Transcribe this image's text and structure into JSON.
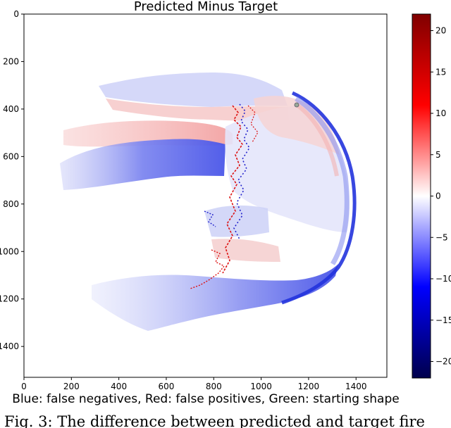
{
  "chart_data": {
    "type": "heatmap",
    "title": "Predicted Minus Target",
    "xlabel": "Blue: false negatives, Red: false positives, Green: starting shape",
    "ylabel": "",
    "xlim": [
      0,
      1530
    ],
    "ylim": [
      1530,
      0
    ],
    "x_ticks": [
      0,
      200,
      400,
      600,
      800,
      1000,
      1200,
      1400
    ],
    "y_ticks": [
      0,
      200,
      400,
      600,
      800,
      1000,
      1200,
      1400
    ],
    "colorbar": {
      "colormap": "seismic",
      "range": [
        -22,
        22
      ],
      "ticks": [
        20,
        15,
        10,
        5,
        0,
        -5,
        -10,
        -15,
        -20
      ],
      "tick_labels": [
        "20",
        "15",
        "10",
        "5",
        "0",
        "−5",
        "−10",
        "−15",
        "−20"
      ]
    },
    "regions": [
      {
        "kind": "false_positive",
        "color": "#f2a8a8"
      },
      {
        "kind": "false_negative",
        "color": "#6f79ee"
      },
      {
        "kind": "starting_shape",
        "color": "#9aa896",
        "center": [
          1150,
          380
        ]
      }
    ]
  },
  "caption": "Fig. 3: The difference between predicted and target fire"
}
